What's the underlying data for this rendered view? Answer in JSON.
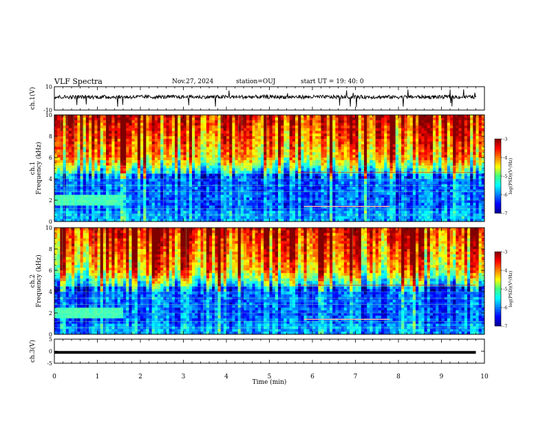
{
  "header": {
    "title": "VLF Spectra",
    "date": "Nov.27, 2024",
    "station": "station=OUJ",
    "start": "start  UT  =   19: 40: 0"
  },
  "chart_data": [
    {
      "type": "line",
      "name": "ch1-waveform",
      "ylabel": "ch.1(V)",
      "ylim": [
        -10,
        10
      ],
      "yticks": [
        "10",
        "-10"
      ],
      "xlim": [
        0,
        10
      ],
      "description_of_series": "noise trace near 0 V with spikes to ~±7 V"
    },
    {
      "type": "heatmap",
      "name": "ch1-spectrogram",
      "ylabel": "ch.1\nFrequency  (kHz)",
      "ylabel_lines": [
        "ch.1",
        "Frequency  (kHz)"
      ],
      "ylim": [
        0,
        10
      ],
      "yticks": [
        "10",
        "8",
        "6",
        "4",
        "2",
        "0"
      ],
      "xlim": [
        0,
        10
      ],
      "colorbar": {
        "label": "log(PSD)(V²/Hz)",
        "range": [
          -7,
          -3
        ],
        "ticks": [
          "-3",
          "-4",
          "-5",
          "-6",
          "-7"
        ]
      }
    },
    {
      "type": "heatmap",
      "name": "ch2-spectrogram",
      "ylabel_lines": [
        "ch.2",
        "Frequency  (kHz)"
      ],
      "ylim": [
        0,
        10
      ],
      "yticks": [
        "10",
        "8",
        "6",
        "4",
        "2",
        "0"
      ],
      "xlim": [
        0,
        10
      ],
      "colorbar": {
        "label": "log(PSD)(V²/Hz)",
        "range": [
          -7,
          -3
        ],
        "ticks": [
          "-3",
          "-4",
          "-5",
          "-6",
          "-7"
        ]
      }
    },
    {
      "type": "line",
      "name": "ch3-waveform",
      "ylabel": "ch.3(V)",
      "ylim": [
        -5,
        5
      ],
      "yticks": [
        "5",
        "0",
        "-5"
      ],
      "xlim": [
        0,
        10
      ],
      "level": -0.5
    }
  ],
  "xaxis": {
    "label": "Time  (min)",
    "ticks": [
      "0",
      "1",
      "2",
      "3",
      "4",
      "5",
      "6",
      "7",
      "8",
      "9",
      "10"
    ]
  },
  "colors": {
    "jet_low": "#00008f",
    "jet_high": "#800000"
  }
}
